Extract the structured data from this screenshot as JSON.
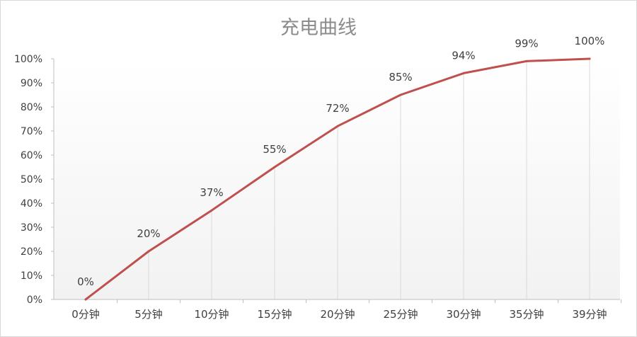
{
  "chart_data": {
    "type": "line",
    "title": "充电曲线",
    "categories": [
      "0分钟",
      "5分钟",
      "10分钟",
      "15分钟",
      "20分钟",
      "25分钟",
      "30分钟",
      "35分钟",
      "39分钟"
    ],
    "series": [
      {
        "values": [
          0,
          20,
          37,
          55,
          72,
          85,
          94,
          99,
          100
        ],
        "data_labels": [
          "0%",
          "20%",
          "37%",
          "55%",
          "72%",
          "85%",
          "94%",
          "99%",
          "100%"
        ],
        "color": "#c0504d"
      }
    ],
    "y_ticks": [
      {
        "value": 0,
        "label": "0%"
      },
      {
        "value": 10,
        "label": "10%"
      },
      {
        "value": 20,
        "label": "20%"
      },
      {
        "value": 30,
        "label": "30%"
      },
      {
        "value": 40,
        "label": "40%"
      },
      {
        "value": 50,
        "label": "50%"
      },
      {
        "value": 60,
        "label": "60%"
      },
      {
        "value": 70,
        "label": "70%"
      },
      {
        "value": 80,
        "label": "80%"
      },
      {
        "value": 90,
        "label": "90%"
      },
      {
        "value": 100,
        "label": "100%"
      }
    ],
    "ylim": [
      0,
      100
    ],
    "xlabel": "",
    "ylabel": "",
    "legend": "none",
    "grid": "vertical drop lines",
    "plot_gradient": [
      "#ffffff",
      "#f2f2f2"
    ],
    "axis_color": "#bfbfbf",
    "text_color": "#404040"
  }
}
